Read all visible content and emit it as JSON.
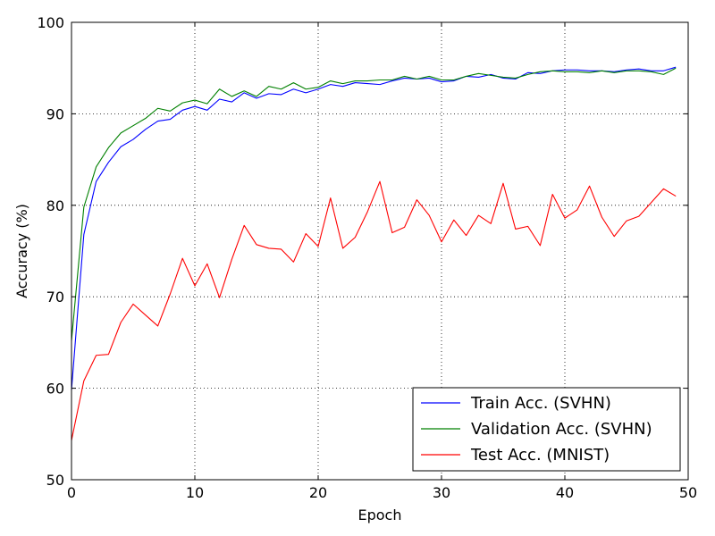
{
  "chart_data": {
    "type": "line",
    "xlabel": "Epoch",
    "ylabel": "Accuracy (%)",
    "xlim": [
      0,
      50
    ],
    "ylim": [
      50,
      100
    ],
    "xticks": [
      0,
      10,
      20,
      30,
      40,
      50
    ],
    "yticks": [
      50,
      60,
      70,
      80,
      90,
      100
    ],
    "grid": true,
    "legend_position": "bottom-right",
    "x": [
      0,
      1,
      2,
      3,
      4,
      5,
      6,
      7,
      8,
      9,
      10,
      11,
      12,
      13,
      14,
      15,
      16,
      17,
      18,
      19,
      20,
      21,
      22,
      23,
      24,
      25,
      26,
      27,
      28,
      29,
      30,
      31,
      32,
      33,
      34,
      35,
      36,
      37,
      38,
      39,
      40,
      41,
      42,
      43,
      44,
      45,
      46,
      47,
      48,
      49
    ],
    "series": [
      {
        "name": "Train Acc. (SVHN)",
        "color": "#0000ff",
        "values": [
          59.8,
          76.8,
          82.6,
          84.7,
          86.4,
          87.2,
          88.3,
          89.2,
          89.4,
          90.4,
          90.8,
          90.4,
          91.6,
          91.3,
          92.3,
          91.7,
          92.2,
          92.1,
          92.7,
          92.3,
          92.7,
          93.2,
          93.0,
          93.4,
          93.3,
          93.2,
          93.6,
          93.9,
          93.8,
          93.9,
          93.5,
          93.6,
          94.1,
          94.0,
          94.3,
          93.9,
          93.8,
          94.5,
          94.4,
          94.7,
          94.8,
          94.8,
          94.7,
          94.7,
          94.6,
          94.8,
          94.9,
          94.7,
          94.7,
          95.1
        ]
      },
      {
        "name": "Validation Acc. (SVHN)",
        "color": "#008000",
        "values": [
          65.2,
          79.8,
          84.2,
          86.3,
          87.9,
          88.7,
          89.5,
          90.6,
          90.3,
          91.2,
          91.5,
          91.1,
          92.7,
          91.9,
          92.5,
          91.9,
          93.0,
          92.7,
          93.4,
          92.7,
          92.9,
          93.6,
          93.3,
          93.6,
          93.6,
          93.7,
          93.7,
          94.1,
          93.8,
          94.1,
          93.7,
          93.7,
          94.1,
          94.4,
          94.2,
          94.0,
          93.9,
          94.3,
          94.6,
          94.7,
          94.6,
          94.6,
          94.5,
          94.7,
          94.5,
          94.7,
          94.7,
          94.6,
          94.3,
          95.0
        ]
      },
      {
        "name": "Test Acc. (MNIST)",
        "color": "#ff0000",
        "values": [
          54.3,
          60.8,
          63.6,
          63.7,
          67.2,
          69.2,
          68.0,
          66.8,
          70.3,
          74.2,
          71.2,
          73.6,
          69.9,
          74.1,
          77.8,
          75.7,
          75.3,
          75.2,
          73.8,
          76.9,
          75.5,
          80.8,
          75.3,
          76.5,
          79.3,
          82.6,
          77.0,
          77.6,
          80.6,
          78.9,
          76.0,
          78.4,
          76.7,
          78.9,
          78.0,
          82.4,
          77.4,
          77.7,
          75.6,
          81.2,
          78.6,
          79.5,
          82.1,
          78.7,
          76.6,
          78.3,
          78.8,
          80.3,
          81.8,
          81.0
        ]
      }
    ]
  }
}
